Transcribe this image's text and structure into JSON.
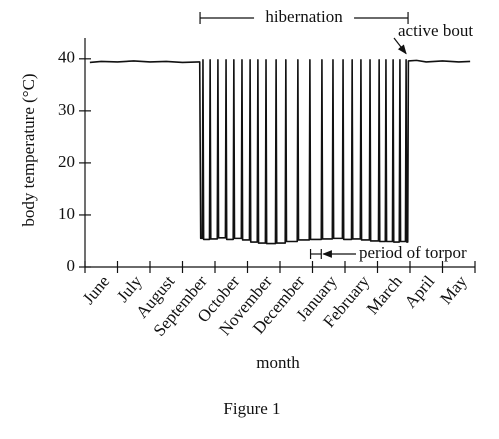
{
  "chart_data": {
    "type": "line",
    "ylabel": "body temperature (°C)",
    "xlabel": "month",
    "caption": "Figure 1",
    "categories": [
      "June",
      "July",
      "August",
      "September",
      "October",
      "November",
      "December",
      "January",
      "February",
      "March",
      "April",
      "May"
    ],
    "annotations": [
      "hibernation",
      "active bout",
      "period of torpor"
    ],
    "xlim": [
      0,
      12
    ],
    "ylim": [
      0,
      44
    ],
    "yticks": [
      0,
      10,
      20,
      30,
      40
    ],
    "x": [
      0.15,
      0.5,
      1,
      1.5,
      2,
      2.5,
      3,
      3.5,
      3.53,
      3.56,
      3.61,
      3.63,
      3.65,
      3.83,
      3.85,
      3.87,
      4.07,
      4.09,
      4.11,
      4.32,
      4.34,
      4.36,
      4.56,
      4.58,
      4.6,
      4.81,
      4.83,
      4.85,
      5.06,
      5.08,
      5.1,
      5.3,
      5.32,
      5.34,
      5.55,
      5.57,
      5.59,
      5.86,
      5.88,
      5.9,
      6.16,
      6.18,
      6.2,
      6.53,
      6.55,
      6.57,
      6.9,
      6.92,
      6.94,
      7.27,
      7.29,
      7.31,
      7.61,
      7.63,
      7.65,
      7.92,
      7.94,
      7.96,
      8.2,
      8.22,
      8.24,
      8.47,
      8.49,
      8.51,
      8.75,
      8.77,
      8.79,
      9.03,
      9.05,
      9.07,
      9.24,
      9.26,
      9.28,
      9.46,
      9.48,
      9.5,
      9.67,
      9.69,
      9.71,
      9.86,
      9.88,
      9.9,
      9.93,
      9.95,
      10.2,
      10.5,
      11,
      11.5,
      11.85
    ],
    "series": [
      {
        "color": "#111111",
        "values": [
          39.3,
          39.5,
          39.4,
          39.6,
          39.4,
          39.5,
          39.3,
          39.4,
          39.4,
          5.5,
          5.5,
          39.8,
          5.3,
          5.3,
          39.8,
          5.4,
          5.4,
          39.8,
          5.6,
          5.6,
          39.8,
          5.3,
          5.3,
          39.8,
          5.5,
          5.5,
          39.8,
          5.2,
          5.2,
          39.8,
          4.8,
          4.8,
          39.8,
          4.6,
          4.6,
          39.8,
          4.5,
          4.5,
          39.8,
          4.6,
          4.6,
          39.8,
          4.9,
          4.9,
          39.8,
          5.2,
          5.2,
          39.8,
          5.3,
          5.3,
          39.8,
          5.4,
          5.4,
          39.8,
          5.5,
          5.5,
          39.8,
          5.3,
          5.3,
          39.8,
          5.4,
          5.4,
          39.8,
          5.2,
          5.2,
          39.8,
          5.0,
          5.0,
          39.8,
          4.9,
          4.9,
          39.8,
          4.9,
          4.9,
          39.8,
          4.8,
          4.8,
          39.8,
          4.9,
          4.9,
          39.8,
          4.8,
          4.8,
          39.6,
          39.7,
          39.4,
          39.6,
          39.4,
          39.5
        ]
      }
    ]
  }
}
